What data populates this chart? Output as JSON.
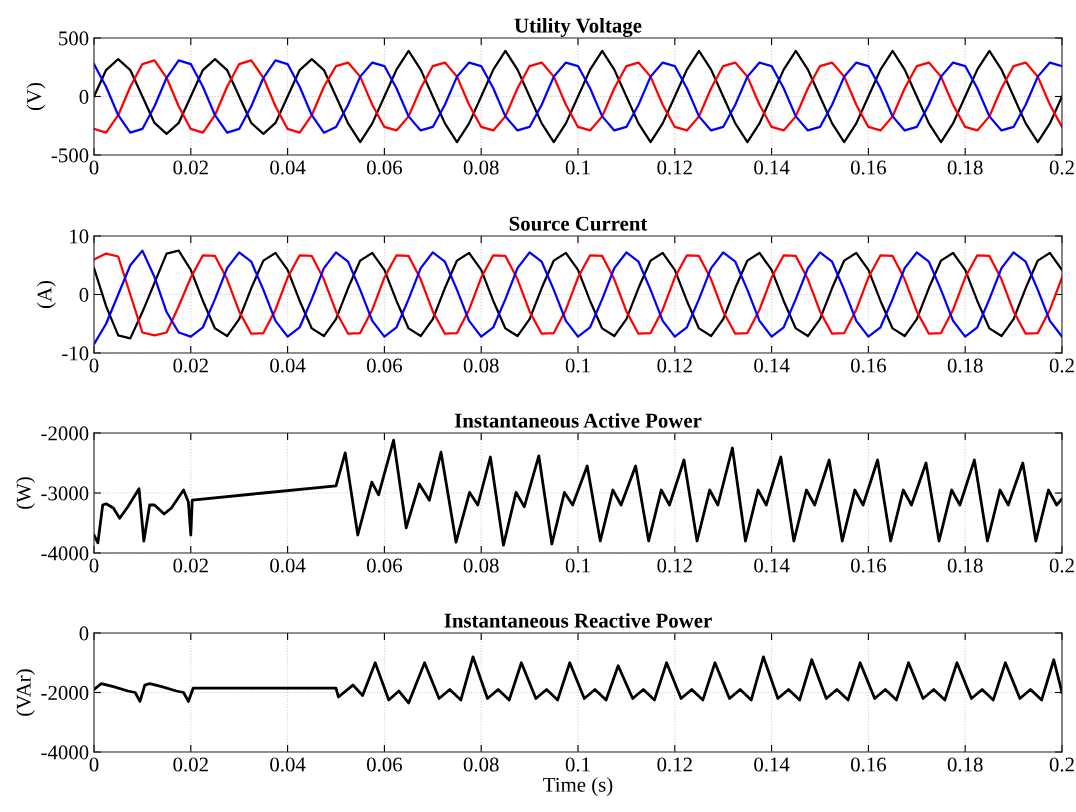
{
  "chart_data": [
    {
      "type": "line",
      "title": "Utility Voltage",
      "ylabel": "(V)",
      "xlim": [
        0,
        0.2
      ],
      "ylim": [
        -500,
        500
      ],
      "xticks": [
        0,
        0.02,
        0.04,
        0.06,
        0.08,
        0.1,
        0.12,
        0.14,
        0.16,
        0.18,
        0.2
      ],
      "yticks": [
        -500,
        0,
        500
      ],
      "grid": true,
      "legend": false,
      "marker": "none",
      "line_style": "solid",
      "x": [
        0,
        0.0025,
        0.005,
        0.0075,
        0.01,
        0.0125,
        0.015,
        0.0175,
        0.02,
        0.0225,
        0.025,
        0.0275,
        0.03,
        0.0325,
        0.035,
        0.0375,
        0.04,
        0.0425,
        0.045,
        0.0475,
        0.05,
        0.0525,
        0.055,
        0.0575,
        0.06,
        0.0625,
        0.065,
        0.0675,
        0.07,
        0.0725,
        0.075,
        0.0775,
        0.08,
        0.0825,
        0.085,
        0.0875,
        0.09,
        0.0925,
        0.095,
        0.0975,
        0.1,
        0.1025,
        0.105,
        0.1075,
        0.11,
        0.1125,
        0.115,
        0.1175,
        0.12,
        0.1225,
        0.125,
        0.1275,
        0.13,
        0.1325,
        0.135,
        0.1375,
        0.14,
        0.1425,
        0.145,
        0.1475,
        0.15,
        0.1525,
        0.155,
        0.1575,
        0.16,
        0.1625,
        0.165,
        0.1675,
        0.17,
        0.1725,
        0.175,
        0.1775,
        0.18,
        0.1825,
        0.185,
        0.1875,
        0.19,
        0.1925,
        0.195,
        0.1975,
        0.2
      ],
      "series": [
        {
          "color": "#000000",
          "values": [
            0,
            226,
            320,
            226,
            0,
            -226,
            -320,
            -226,
            0,
            226,
            320,
            226,
            0,
            -226,
            -320,
            -226,
            0,
            226,
            320,
            226,
            0,
            -230,
            -390,
            -230,
            0,
            230,
            390,
            230,
            0,
            -230,
            -390,
            -230,
            0,
            230,
            390,
            230,
            0,
            -230,
            -390,
            -230,
            0,
            230,
            390,
            230,
            0,
            -230,
            -390,
            -230,
            0,
            230,
            390,
            230,
            0,
            -230,
            -390,
            -230,
            0,
            230,
            390,
            230,
            0,
            -230,
            -390,
            -230,
            0,
            230,
            390,
            230,
            0,
            -230,
            -390,
            -230,
            0,
            230,
            390,
            230,
            0,
            -230,
            -390,
            -230,
            0
          ]
        },
        {
          "color": "#ff0000",
          "values": [
            -277,
            -309,
            -160,
            83,
            277,
            309,
            160,
            -83,
            -277,
            -309,
            -160,
            83,
            277,
            309,
            160,
            -83,
            -277,
            -309,
            -160,
            83,
            260,
            290,
            170,
            -70,
            -260,
            -290,
            -170,
            70,
            260,
            290,
            170,
            -70,
            -260,
            -290,
            -170,
            70,
            260,
            290,
            170,
            -70,
            -260,
            -290,
            -170,
            70,
            260,
            290,
            170,
            -70,
            -260,
            -290,
            -170,
            70,
            260,
            290,
            170,
            -70,
            -260,
            -290,
            -170,
            70,
            260,
            290,
            170,
            -70,
            -260,
            -290,
            -170,
            70,
            260,
            290,
            170,
            -70,
            -260,
            -290,
            -170,
            70,
            260,
            290,
            170,
            -70,
            -260
          ]
        },
        {
          "color": "#0000ff",
          "values": [
            277,
            83,
            -160,
            -309,
            -277,
            -83,
            160,
            309,
            277,
            83,
            -160,
            -309,
            -277,
            -83,
            160,
            309,
            277,
            83,
            -160,
            -309,
            -260,
            -70,
            170,
            290,
            260,
            70,
            -170,
            -290,
            -260,
            -70,
            170,
            290,
            260,
            70,
            -170,
            -290,
            -260,
            -70,
            170,
            290,
            260,
            70,
            -170,
            -290,
            -260,
            -70,
            170,
            290,
            260,
            70,
            -170,
            -290,
            -260,
            -70,
            170,
            290,
            260,
            70,
            -170,
            -290,
            -260,
            -70,
            170,
            290,
            260,
            70,
            -170,
            -290,
            -260,
            -70,
            170,
            290,
            260,
            70,
            -170,
            -290,
            -260,
            -70,
            170,
            290,
            260
          ]
        }
      ]
    },
    {
      "type": "line",
      "title": "Source Current",
      "ylabel": "(A)",
      "xlim": [
        0,
        0.2
      ],
      "ylim": [
        -10,
        10
      ],
      "xticks": [
        0,
        0.02,
        0.04,
        0.06,
        0.08,
        0.1,
        0.12,
        0.14,
        0.16,
        0.18,
        0.2
      ],
      "yticks": [
        -10,
        0,
        10
      ],
      "grid": true,
      "legend": false,
      "marker": "none",
      "line_style": "solid",
      "x": [
        0,
        0.0025,
        0.005,
        0.0075,
        0.01,
        0.0125,
        0.015,
        0.0175,
        0.02,
        0.0225,
        0.025,
        0.0275,
        0.03,
        0.0325,
        0.035,
        0.0375,
        0.04,
        0.0425,
        0.045,
        0.0475,
        0.05,
        0.0525,
        0.055,
        0.0575,
        0.06,
        0.0625,
        0.065,
        0.0675,
        0.07,
        0.0725,
        0.075,
        0.0775,
        0.08,
        0.0825,
        0.085,
        0.0875,
        0.09,
        0.0925,
        0.095,
        0.0975,
        0.1,
        0.1025,
        0.105,
        0.1075,
        0.11,
        0.1125,
        0.115,
        0.1175,
        0.12,
        0.1225,
        0.125,
        0.1275,
        0.13,
        0.1325,
        0.135,
        0.1375,
        0.14,
        0.1425,
        0.145,
        0.1475,
        0.15,
        0.1525,
        0.155,
        0.1575,
        0.16,
        0.1625,
        0.165,
        0.1675,
        0.17,
        0.1725,
        0.175,
        0.1775,
        0.18,
        0.1825,
        0.185,
        0.1875,
        0.19,
        0.1925,
        0.195,
        0.1975,
        0.2
      ],
      "series": [
        {
          "color": "#000000",
          "values": [
            4.5,
            -2,
            -7,
            -7.5,
            -3,
            2,
            7,
            7.5,
            4.2,
            -1.1,
            -5.8,
            -7.1,
            -4.2,
            1.1,
            5.8,
            7.1,
            4.2,
            -1.1,
            -5.8,
            -7.1,
            -4.2,
            1.1,
            5.8,
            7.1,
            4.2,
            -1.1,
            -5.8,
            -7.1,
            -4.2,
            1.1,
            5.8,
            7.1,
            4.2,
            -1.1,
            -5.8,
            -7.1,
            -4.2,
            1.1,
            5.8,
            7.1,
            4.2,
            -1.1,
            -5.8,
            -7.1,
            -4.2,
            1.1,
            5.8,
            7.1,
            4.2,
            -1.1,
            -5.8,
            -7.1,
            -4.2,
            1.1,
            5.8,
            7.1,
            4.2,
            -1.1,
            -5.8,
            -7.1,
            -4.2,
            1.1,
            5.8,
            7.1,
            4.2,
            -1.1,
            -5.8,
            -7.1,
            -4.2,
            1.1,
            5.8,
            7.1,
            4.2,
            -1.1,
            -5.8,
            -7.1,
            -4.2,
            1.1,
            5.8,
            7.1,
            4.2
          ]
        },
        {
          "color": "#ff0000",
          "values": [
            6,
            7,
            6.5,
            0,
            -6.5,
            -7,
            -6.5,
            -2,
            2.9,
            6.7,
            6.6,
            2.6,
            -2.9,
            -6.7,
            -6.6,
            -2.6,
            2.9,
            6.7,
            6.6,
            2.6,
            -2.9,
            -6.7,
            -6.6,
            -2.6,
            2.9,
            6.7,
            6.6,
            2.6,
            -2.9,
            -6.7,
            -6.6,
            -2.6,
            2.9,
            6.7,
            6.6,
            2.6,
            -2.9,
            -6.7,
            -6.6,
            -2.6,
            2.9,
            6.7,
            6.6,
            2.6,
            -2.9,
            -6.7,
            -6.6,
            -2.6,
            2.9,
            6.7,
            6.6,
            2.6,
            -2.9,
            -6.7,
            -6.6,
            -2.6,
            2.9,
            6.7,
            6.6,
            2.6,
            -2.9,
            -6.7,
            -6.6,
            -2.6,
            2.9,
            6.7,
            6.6,
            2.6,
            -2.9,
            -6.7,
            -6.6,
            -2.6,
            2.9,
            6.7,
            6.6,
            2.6,
            -2.9,
            -6.7,
            -6.6,
            -2.6,
            2.9
          ]
        },
        {
          "color": "#0000ff",
          "values": [
            -8.5,
            -5,
            0,
            5,
            7.5,
            3,
            -3,
            -6.5,
            -7.2,
            -5.6,
            -0.8,
            4.5,
            7.2,
            5.6,
            0.8,
            -4.5,
            -7.2,
            -5.6,
            -0.8,
            4.5,
            7.2,
            5.6,
            0.8,
            -4.5,
            -7.2,
            -5.6,
            -0.8,
            4.5,
            7.2,
            5.6,
            0.8,
            -4.5,
            -7.2,
            -5.6,
            -0.8,
            4.5,
            7.2,
            5.6,
            0.8,
            -4.5,
            -7.2,
            -5.6,
            -0.8,
            4.5,
            7.2,
            5.6,
            0.8,
            -4.5,
            -7.2,
            -5.6,
            -0.8,
            4.5,
            7.2,
            5.6,
            0.8,
            -4.5,
            -7.2,
            -5.6,
            -0.8,
            4.5,
            7.2,
            5.6,
            0.8,
            -4.5,
            -7.2,
            -5.6,
            -0.8,
            4.5,
            7.2,
            5.6,
            0.8,
            -4.5,
            -7.2,
            -5.6,
            -0.8,
            4.5,
            7.2,
            5.6,
            0.8,
            -4.5,
            -7.2
          ]
        }
      ]
    },
    {
      "type": "line",
      "title": "Instantaneous Active Power",
      "ylabel": "(W)",
      "xlim": [
        0,
        0.2
      ],
      "ylim": [
        -4000,
        -2000
      ],
      "xticks": [
        0,
        0.02,
        0.04,
        0.06,
        0.08,
        0.1,
        0.12,
        0.14,
        0.16,
        0.18,
        0.2
      ],
      "yticks": [
        -4000,
        -3000,
        -2000
      ],
      "grid": true,
      "legend": false,
      "marker": "none",
      "line_style": "solid",
      "series": [
        {
          "color": "#000000",
          "x": [
            0,
            0.0008,
            0.0018,
            0.0025,
            0.004,
            0.0053,
            0.007,
            0.0093,
            0.0103,
            0.0115,
            0.0125,
            0.0145,
            0.016,
            0.0185,
            0.0195,
            0.02,
            0.0203,
            0.035,
            0.05,
            0.0519,
            0.0545,
            0.0574,
            0.0588,
            0.0619,
            0.0645,
            0.0672,
            0.0693,
            0.0717,
            0.0748,
            0.0776,
            0.0793,
            0.0819,
            0.0846,
            0.0872,
            0.0889,
            0.0919,
            0.0946,
            0.0972,
            0.0989,
            0.1019,
            0.1046,
            0.1072,
            0.1089,
            0.1119,
            0.1146,
            0.1172,
            0.1189,
            0.1219,
            0.1246,
            0.1272,
            0.1289,
            0.1319,
            0.1346,
            0.1372,
            0.1389,
            0.1419,
            0.1446,
            0.1472,
            0.1489,
            0.1519,
            0.1546,
            0.1572,
            0.1589,
            0.1619,
            0.1646,
            0.1672,
            0.1689,
            0.1719,
            0.1746,
            0.1772,
            0.1789,
            0.1819,
            0.1846,
            0.1872,
            0.1889,
            0.1919,
            0.1946,
            0.1972,
            0.1989,
            0.2
          ],
          "values": [
            -3700,
            -3830,
            -3200,
            -3180,
            -3250,
            -3420,
            -3230,
            -2930,
            -3800,
            -3200,
            -3200,
            -3350,
            -3250,
            -2950,
            -3150,
            -3700,
            -3120,
            -3000,
            -2880,
            -2330,
            -3700,
            -2820,
            -3030,
            -2120,
            -3580,
            -2850,
            -3120,
            -2320,
            -3820,
            -2990,
            -3200,
            -2400,
            -3870,
            -2990,
            -3230,
            -2380,
            -3850,
            -2990,
            -3200,
            -2550,
            -3800,
            -2950,
            -3200,
            -2550,
            -3800,
            -2950,
            -3200,
            -2450,
            -3800,
            -2950,
            -3200,
            -2250,
            -3800,
            -2950,
            -3200,
            -2400,
            -3800,
            -2950,
            -3200,
            -2450,
            -3800,
            -2950,
            -3200,
            -2450,
            -3800,
            -2950,
            -3200,
            -2500,
            -3800,
            -2950,
            -3200,
            -2450,
            -3800,
            -2950,
            -3200,
            -2500,
            -3800,
            -2950,
            -3200,
            -3100
          ]
        }
      ]
    },
    {
      "type": "line",
      "title": "Instantaneous Reactive Power",
      "ylabel": "(VAr)",
      "xlabel": "Time (s)",
      "xlim": [
        0,
        0.2
      ],
      "ylim": [
        -4000,
        0
      ],
      "xticks": [
        0,
        0.02,
        0.04,
        0.06,
        0.08,
        0.1,
        0.12,
        0.14,
        0.16,
        0.18,
        0.2
      ],
      "yticks": [
        -4000,
        -2000,
        0
      ],
      "grid": true,
      "legend": false,
      "marker": "none",
      "line_style": "solid",
      "series": [
        {
          "color": "#000000",
          "x": [
            0,
            0.0015,
            0.004,
            0.007,
            0.0085,
            0.0095,
            0.0105,
            0.0115,
            0.014,
            0.017,
            0.0185,
            0.0195,
            0.0205,
            0.05,
            0.0505,
            0.0535,
            0.0555,
            0.0581,
            0.0609,
            0.063,
            0.065,
            0.0683,
            0.0713,
            0.0735,
            0.0758,
            0.0783,
            0.0813,
            0.0835,
            0.0858,
            0.0883,
            0.0913,
            0.0935,
            0.0958,
            0.0983,
            0.1013,
            0.1035,
            0.1058,
            0.1083,
            0.1113,
            0.1135,
            0.1158,
            0.1183,
            0.1213,
            0.1235,
            0.1258,
            0.1283,
            0.1313,
            0.1335,
            0.1358,
            0.1383,
            0.1413,
            0.1435,
            0.1458,
            0.1483,
            0.1513,
            0.1535,
            0.1558,
            0.1583,
            0.1613,
            0.1635,
            0.1658,
            0.1683,
            0.1713,
            0.1735,
            0.1758,
            0.1783,
            0.1813,
            0.1835,
            0.1858,
            0.1883,
            0.1913,
            0.1935,
            0.1958,
            0.1983,
            0.2
          ],
          "values": [
            -1900,
            -1700,
            -1800,
            -1950,
            -2000,
            -2300,
            -1750,
            -1700,
            -1800,
            -1950,
            -2000,
            -2300,
            -1850,
            -1850,
            -2150,
            -1750,
            -2100,
            -1000,
            -2250,
            -1950,
            -2350,
            -1000,
            -2200,
            -1900,
            -2250,
            -800,
            -2200,
            -1900,
            -2250,
            -1000,
            -2200,
            -1900,
            -2250,
            -1000,
            -2200,
            -1900,
            -2250,
            -1100,
            -2200,
            -1900,
            -2250,
            -1000,
            -2200,
            -1900,
            -2250,
            -1000,
            -2200,
            -1900,
            -2250,
            -800,
            -2200,
            -1900,
            -2250,
            -900,
            -2200,
            -1900,
            -2250,
            -1000,
            -2200,
            -1900,
            -2250,
            -1000,
            -2200,
            -1900,
            -2250,
            -1000,
            -2200,
            -1900,
            -2250,
            -1000,
            -2200,
            -1900,
            -2250,
            -900,
            -2000
          ]
        }
      ]
    }
  ]
}
